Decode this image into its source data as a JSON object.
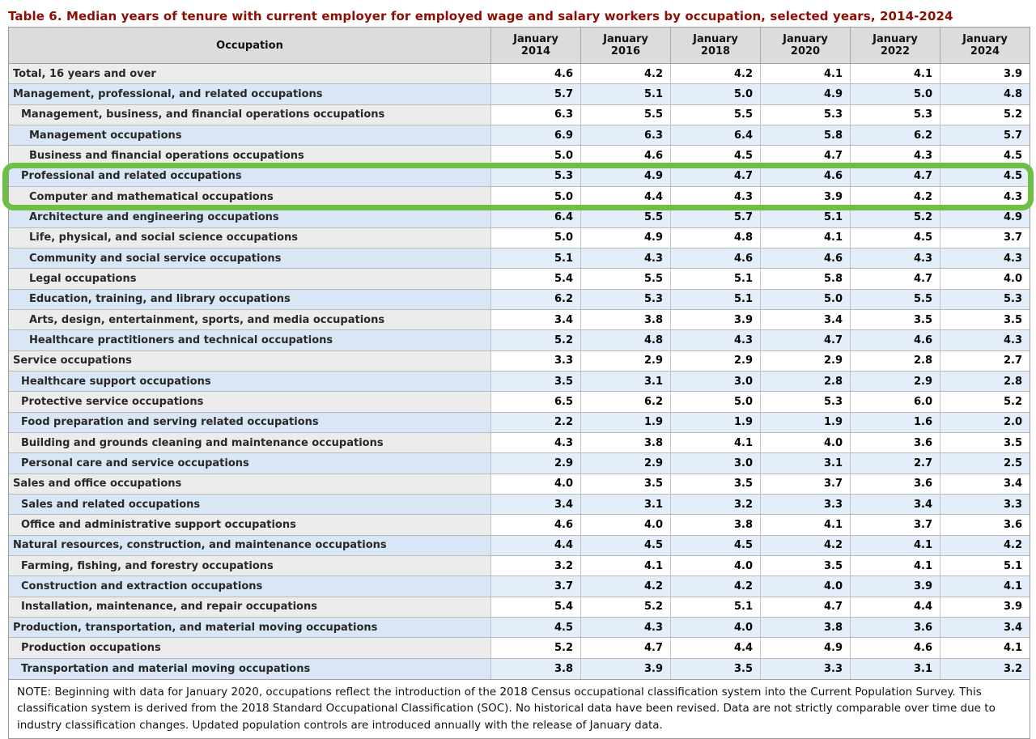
{
  "title": "Table 6. Median years of tenure with current employer for employed wage and salary workers by occupation, selected years, 2014-2024",
  "colors": {
    "title_maroon": "#8e0d03",
    "header_bg": "#dcdcdc",
    "row_grey_stub": "#ececec",
    "row_blue_stub": "#d8e6f6",
    "row_blue_data": "#e4eefa",
    "highlight_green": "#6fbf46"
  },
  "table": {
    "occupation_header": "Occupation",
    "columns": [
      {
        "month": "January",
        "year": "2014"
      },
      {
        "month": "January",
        "year": "2016"
      },
      {
        "month": "January",
        "year": "2018"
      },
      {
        "month": "January",
        "year": "2020"
      },
      {
        "month": "January",
        "year": "2022"
      },
      {
        "month": "January",
        "year": "2024"
      }
    ],
    "rows": [
      {
        "label": "Total, 16 years and over",
        "indent": 0,
        "highlighted": false,
        "values": [
          "4.6",
          "4.2",
          "4.2",
          "4.1",
          "4.1",
          "3.9"
        ]
      },
      {
        "label": "Management, professional, and related occupations",
        "indent": 0,
        "highlighted": false,
        "values": [
          "5.7",
          "5.1",
          "5.0",
          "4.9",
          "5.0",
          "4.8"
        ]
      },
      {
        "label": "Management, business, and financial operations occupations",
        "indent": 1,
        "highlighted": false,
        "values": [
          "6.3",
          "5.5",
          "5.5",
          "5.3",
          "5.3",
          "5.2"
        ]
      },
      {
        "label": "Management occupations",
        "indent": 2,
        "highlighted": false,
        "values": [
          "6.9",
          "6.3",
          "6.4",
          "5.8",
          "6.2",
          "5.7"
        ]
      },
      {
        "label": "Business and financial operations occupations",
        "indent": 2,
        "highlighted": false,
        "values": [
          "5.0",
          "4.6",
          "4.5",
          "4.7",
          "4.3",
          "4.5"
        ]
      },
      {
        "label": "Professional and related occupations",
        "indent": 1,
        "highlighted": true,
        "values": [
          "5.3",
          "4.9",
          "4.7",
          "4.6",
          "4.7",
          "4.5"
        ]
      },
      {
        "label": "Computer and mathematical occupations",
        "indent": 2,
        "highlighted": true,
        "values": [
          "5.0",
          "4.4",
          "4.3",
          "3.9",
          "4.2",
          "4.3"
        ]
      },
      {
        "label": "Architecture and engineering occupations",
        "indent": 2,
        "highlighted": false,
        "values": [
          "6.4",
          "5.5",
          "5.7",
          "5.1",
          "5.2",
          "4.9"
        ]
      },
      {
        "label": "Life, physical, and social science occupations",
        "indent": 2,
        "highlighted": false,
        "values": [
          "5.0",
          "4.9",
          "4.8",
          "4.1",
          "4.5",
          "3.7"
        ]
      },
      {
        "label": "Community and social service occupations",
        "indent": 2,
        "highlighted": false,
        "values": [
          "5.1",
          "4.3",
          "4.6",
          "4.6",
          "4.3",
          "4.3"
        ]
      },
      {
        "label": "Legal occupations",
        "indent": 2,
        "highlighted": false,
        "values": [
          "5.4",
          "5.5",
          "5.1",
          "5.8",
          "4.7",
          "4.0"
        ]
      },
      {
        "label": "Education, training, and library occupations",
        "indent": 2,
        "highlighted": false,
        "values": [
          "6.2",
          "5.3",
          "5.1",
          "5.0",
          "5.5",
          "5.3"
        ]
      },
      {
        "label": "Arts, design, entertainment, sports, and media occupations",
        "indent": 2,
        "highlighted": false,
        "values": [
          "3.4",
          "3.8",
          "3.9",
          "3.4",
          "3.5",
          "3.5"
        ]
      },
      {
        "label": "Healthcare practitioners and technical occupations",
        "indent": 2,
        "highlighted": false,
        "values": [
          "5.2",
          "4.8",
          "4.3",
          "4.7",
          "4.6",
          "4.3"
        ]
      },
      {
        "label": "Service occupations",
        "indent": 0,
        "highlighted": false,
        "values": [
          "3.3",
          "2.9",
          "2.9",
          "2.9",
          "2.8",
          "2.7"
        ]
      },
      {
        "label": "Healthcare support occupations",
        "indent": 1,
        "highlighted": false,
        "values": [
          "3.5",
          "3.1",
          "3.0",
          "2.8",
          "2.9",
          "2.8"
        ]
      },
      {
        "label": "Protective service occupations",
        "indent": 1,
        "highlighted": false,
        "values": [
          "6.5",
          "6.2",
          "5.0",
          "5.3",
          "6.0",
          "5.2"
        ]
      },
      {
        "label": "Food preparation and serving related occupations",
        "indent": 1,
        "highlighted": false,
        "values": [
          "2.2",
          "1.9",
          "1.9",
          "1.9",
          "1.6",
          "2.0"
        ]
      },
      {
        "label": "Building and grounds cleaning and maintenance occupations",
        "indent": 1,
        "highlighted": false,
        "values": [
          "4.3",
          "3.8",
          "4.1",
          "4.0",
          "3.6",
          "3.5"
        ]
      },
      {
        "label": "Personal care and service occupations",
        "indent": 1,
        "highlighted": false,
        "values": [
          "2.9",
          "2.9",
          "3.0",
          "3.1",
          "2.7",
          "2.5"
        ]
      },
      {
        "label": "Sales and office occupations",
        "indent": 0,
        "highlighted": false,
        "values": [
          "4.0",
          "3.5",
          "3.5",
          "3.7",
          "3.6",
          "3.4"
        ]
      },
      {
        "label": "Sales and related occupations",
        "indent": 1,
        "highlighted": false,
        "values": [
          "3.4",
          "3.1",
          "3.2",
          "3.3",
          "3.4",
          "3.3"
        ]
      },
      {
        "label": "Office and administrative support occupations",
        "indent": 1,
        "highlighted": false,
        "values": [
          "4.6",
          "4.0",
          "3.8",
          "4.1",
          "3.7",
          "3.6"
        ]
      },
      {
        "label": "Natural resources, construction, and maintenance occupations",
        "indent": 0,
        "highlighted": false,
        "values": [
          "4.4",
          "4.5",
          "4.5",
          "4.2",
          "4.1",
          "4.2"
        ]
      },
      {
        "label": "Farming, fishing, and forestry occupations",
        "indent": 1,
        "highlighted": false,
        "values": [
          "3.2",
          "4.1",
          "4.0",
          "3.5",
          "4.1",
          "5.1"
        ]
      },
      {
        "label": "Construction and extraction occupations",
        "indent": 1,
        "highlighted": false,
        "values": [
          "3.7",
          "4.2",
          "4.2",
          "4.0",
          "3.9",
          "4.1"
        ]
      },
      {
        "label": "Installation, maintenance, and repair occupations",
        "indent": 1,
        "highlighted": false,
        "values": [
          "5.4",
          "5.2",
          "5.1",
          "4.7",
          "4.4",
          "3.9"
        ]
      },
      {
        "label": "Production, transportation, and material moving occupations",
        "indent": 0,
        "highlighted": false,
        "values": [
          "4.5",
          "4.3",
          "4.0",
          "3.8",
          "3.6",
          "3.4"
        ]
      },
      {
        "label": "Production occupations",
        "indent": 1,
        "highlighted": false,
        "values": [
          "5.2",
          "4.7",
          "4.4",
          "4.9",
          "4.6",
          "4.1"
        ]
      },
      {
        "label": "Transportation and material moving occupations",
        "indent": 1,
        "highlighted": false,
        "values": [
          "3.8",
          "3.9",
          "3.5",
          "3.3",
          "3.1",
          "3.2"
        ]
      }
    ],
    "note": "NOTE: Beginning with data for January 2020, occupations reflect the introduction of the 2018 Census occupational classification system into the Current Population Survey. This classification system is derived from the 2018 Standard Occupational Classification (SOC). No historical data have been revised. Data are not strictly comparable over time due to industry classification changes. Updated population controls are introduced annually with the release of January data."
  },
  "chart_data": {
    "type": "table",
    "title": "Table 6. Median years of tenure with current employer for employed wage and salary workers by occupation, selected years, 2014-2024",
    "categories": [
      "January 2014",
      "January 2016",
      "January 2018",
      "January 2020",
      "January 2022",
      "January 2024"
    ],
    "series": [
      {
        "name": "Total, 16 years and over",
        "values": [
          4.6,
          4.2,
          4.2,
          4.1,
          4.1,
          3.9
        ]
      },
      {
        "name": "Management, professional, and related occupations",
        "values": [
          5.7,
          5.1,
          5.0,
          4.9,
          5.0,
          4.8
        ]
      },
      {
        "name": "Management, business, and financial operations occupations",
        "values": [
          6.3,
          5.5,
          5.5,
          5.3,
          5.3,
          5.2
        ]
      },
      {
        "name": "Management occupations",
        "values": [
          6.9,
          6.3,
          6.4,
          5.8,
          6.2,
          5.7
        ]
      },
      {
        "name": "Business and financial operations occupations",
        "values": [
          5.0,
          4.6,
          4.5,
          4.7,
          4.3,
          4.5
        ]
      },
      {
        "name": "Professional and related occupations",
        "values": [
          5.3,
          4.9,
          4.7,
          4.6,
          4.7,
          4.5
        ]
      },
      {
        "name": "Computer and mathematical occupations",
        "values": [
          5.0,
          4.4,
          4.3,
          3.9,
          4.2,
          4.3
        ]
      },
      {
        "name": "Architecture and engineering occupations",
        "values": [
          6.4,
          5.5,
          5.7,
          5.1,
          5.2,
          4.9
        ]
      },
      {
        "name": "Life, physical, and social science occupations",
        "values": [
          5.0,
          4.9,
          4.8,
          4.1,
          4.5,
          3.7
        ]
      },
      {
        "name": "Community and social service occupations",
        "values": [
          5.1,
          4.3,
          4.6,
          4.6,
          4.3,
          4.3
        ]
      },
      {
        "name": "Legal occupations",
        "values": [
          5.4,
          5.5,
          5.1,
          5.8,
          4.7,
          4.0
        ]
      },
      {
        "name": "Education, training, and library occupations",
        "values": [
          6.2,
          5.3,
          5.1,
          5.0,
          5.5,
          5.3
        ]
      },
      {
        "name": "Arts, design, entertainment, sports, and media occupations",
        "values": [
          3.4,
          3.8,
          3.9,
          3.4,
          3.5,
          3.5
        ]
      },
      {
        "name": "Healthcare practitioners and technical occupations",
        "values": [
          5.2,
          4.8,
          4.3,
          4.7,
          4.6,
          4.3
        ]
      },
      {
        "name": "Service occupations",
        "values": [
          3.3,
          2.9,
          2.9,
          2.9,
          2.8,
          2.7
        ]
      },
      {
        "name": "Healthcare support occupations",
        "values": [
          3.5,
          3.1,
          3.0,
          2.8,
          2.9,
          2.8
        ]
      },
      {
        "name": "Protective service occupations",
        "values": [
          6.5,
          6.2,
          5.0,
          5.3,
          6.0,
          5.2
        ]
      },
      {
        "name": "Food preparation and serving related occupations",
        "values": [
          2.2,
          1.9,
          1.9,
          1.9,
          1.6,
          2.0
        ]
      },
      {
        "name": "Building and grounds cleaning and maintenance occupations",
        "values": [
          4.3,
          3.8,
          4.1,
          4.0,
          3.6,
          3.5
        ]
      },
      {
        "name": "Personal care and service occupations",
        "values": [
          2.9,
          2.9,
          3.0,
          3.1,
          2.7,
          2.5
        ]
      },
      {
        "name": "Sales and office occupations",
        "values": [
          4.0,
          3.5,
          3.5,
          3.7,
          3.6,
          3.4
        ]
      },
      {
        "name": "Sales and related occupations",
        "values": [
          3.4,
          3.1,
          3.2,
          3.3,
          3.4,
          3.3
        ]
      },
      {
        "name": "Office and administrative support occupations",
        "values": [
          4.6,
          4.0,
          3.8,
          4.1,
          3.7,
          3.6
        ]
      },
      {
        "name": "Natural resources, construction, and maintenance occupations",
        "values": [
          4.4,
          4.5,
          4.5,
          4.2,
          4.1,
          4.2
        ]
      },
      {
        "name": "Farming, fishing, and forestry occupations",
        "values": [
          3.2,
          4.1,
          4.0,
          3.5,
          4.1,
          5.1
        ]
      },
      {
        "name": "Construction and extraction occupations",
        "values": [
          3.7,
          4.2,
          4.2,
          4.0,
          3.9,
          4.1
        ]
      },
      {
        "name": "Installation, maintenance, and repair occupations",
        "values": [
          5.4,
          5.2,
          5.1,
          4.7,
          4.4,
          3.9
        ]
      },
      {
        "name": "Production, transportation, and material moving occupations",
        "values": [
          4.5,
          4.3,
          4.0,
          3.8,
          3.6,
          3.4
        ]
      },
      {
        "name": "Production occupations",
        "values": [
          5.2,
          4.7,
          4.4,
          4.9,
          4.6,
          4.1
        ]
      },
      {
        "name": "Transportation and material moving occupations",
        "values": [
          3.8,
          3.9,
          3.5,
          3.3,
          3.1,
          3.2
        ]
      }
    ]
  }
}
